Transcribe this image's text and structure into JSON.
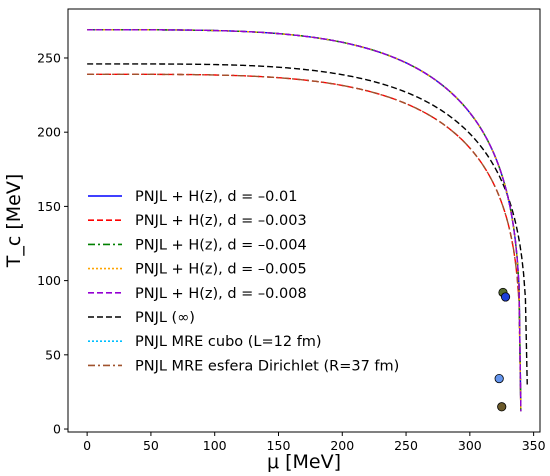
{
  "chart_data": {
    "type": "line",
    "title": "",
    "xlabel": "μ [MeV]",
    "ylabel": "T_c [MeV]",
    "xlim": [
      -15,
      355
    ],
    "ylim": [
      -2,
      283
    ],
    "x_ticks": [
      0,
      50,
      100,
      150,
      200,
      250,
      300,
      350
    ],
    "y_ticks": [
      0,
      50,
      100,
      150,
      200,
      250
    ],
    "legend_position": "center-left",
    "grid": false,
    "series": [
      {
        "name": "PNJL + H(z), d = –0.01",
        "color": "#0000ff",
        "style": "solid",
        "T0": 269,
        "mu_end": 340,
        "T_end": 12
      },
      {
        "name": "PNJL + H(z), d = –0.003",
        "color": "#ff0000",
        "style": "dashed",
        "T0": 239,
        "mu_end": 340,
        "T_end": 12
      },
      {
        "name": "PNJL + H(z), d = –0.004",
        "color": "#008000",
        "style": "dashdot",
        "T0": 269,
        "mu_end": 340,
        "T_end": 12
      },
      {
        "name": "PNJL + H(z), d = –0.005",
        "color": "#ffa500",
        "style": "dotted",
        "T0": 269,
        "mu_end": 340,
        "T_end": 12
      },
      {
        "name": "PNJL + H(z), d = –0.008",
        "color": "#9400d3",
        "style": "dashed",
        "T0": 269,
        "mu_end": 340,
        "T_end": 12
      },
      {
        "name": "PNJL (∞)",
        "color": "#000000",
        "style": "dashed",
        "T0": 246,
        "mu_end": 345,
        "T_end": 30
      },
      {
        "name": "PNJL MRE cubo (L=12 fm)",
        "color": "#00bfff",
        "style": "dotted",
        "T0": 269,
        "mu_end": 340,
        "T_end": 12
      },
      {
        "name": "PNJL MRE esfera Dirichlet (R=37 fm)",
        "color": "#a0522d",
        "style": "dashdot",
        "T0": 239,
        "mu_end": 340,
        "T_end": 12
      }
    ],
    "critical_points": [
      {
        "mu": 326,
        "T": 92,
        "color": "#556b2f"
      },
      {
        "mu": 328,
        "T": 89,
        "color": "#1e3fd8"
      },
      {
        "mu": 323,
        "T": 34,
        "color": "#6495ed"
      },
      {
        "mu": 325,
        "T": 15,
        "color": "#6b5a2a"
      }
    ]
  }
}
